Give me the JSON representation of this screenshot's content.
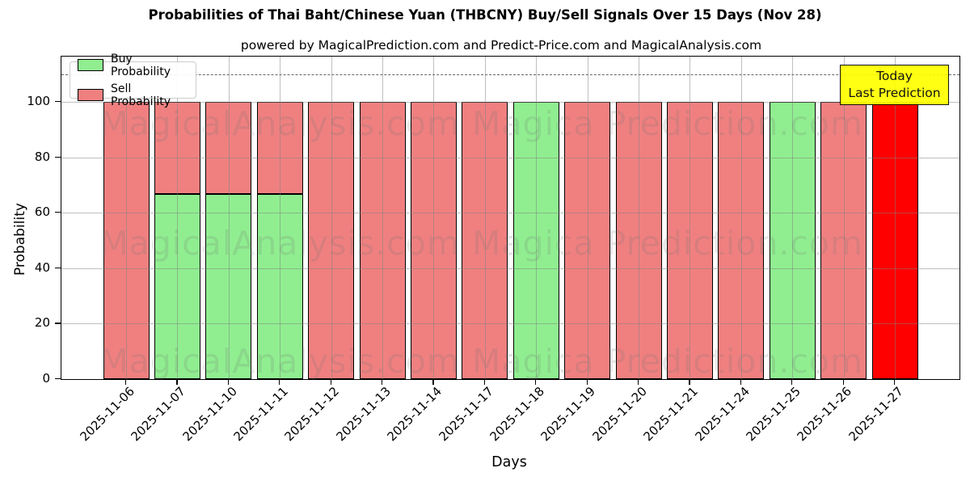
{
  "watermarks": [
    "MagicalAnalysis.com",
    "Magica Prediction.com"
  ],
  "colors": {
    "buy": "#90ee90",
    "sell": "#f08080",
    "highlight_red": "#ff0000",
    "annotation_bg": "#ffff00",
    "grid": "#b0b0b0",
    "edge": "#000000"
  },
  "chart_data": {
    "type": "bar",
    "stacked": true,
    "title": "Probabilities of Thai Baht/Chinese Yuan (THBCNY) Buy/Sell Signals Over 15 Days (Nov 28)",
    "subtitle": "powered by MagicalPrediction.com and Predict-Price.com and MagicalAnalysis.com",
    "xlabel": "Days",
    "ylabel": "Probability",
    "yticks": [
      0,
      20,
      40,
      60,
      80,
      100
    ],
    "ylim": [
      0,
      116.3
    ],
    "grid": true,
    "legend_position": "upper left",
    "dashed_line_y": 110,
    "categories": [
      "2025-11-06",
      "2025-11-07",
      "2025-11-10",
      "2025-11-11",
      "2025-11-12",
      "2025-11-13",
      "2025-11-14",
      "2025-11-17",
      "2025-11-18",
      "2025-11-19",
      "2025-11-20",
      "2025-11-21",
      "2025-11-24",
      "2025-11-25",
      "2025-11-26",
      "2025-11-27"
    ],
    "series": [
      {
        "name": "Buy Probability",
        "color": "#90ee90",
        "values": [
          0,
          66.7,
          66.7,
          66.7,
          0,
          0,
          0,
          0,
          100,
          0,
          0,
          0,
          0,
          100,
          0,
          0
        ]
      },
      {
        "name": "Sell Probability",
        "color": "#f08080",
        "values": [
          100,
          33.3,
          33.3,
          33.3,
          100,
          100,
          100,
          100,
          0,
          100,
          100,
          100,
          100,
          0,
          100,
          100
        ]
      }
    ],
    "highlight": {
      "index": 15,
      "color": "#ff0000"
    },
    "annotation": {
      "lines": [
        "Today",
        "Last Prediction"
      ],
      "bg": "#ffff00"
    }
  }
}
